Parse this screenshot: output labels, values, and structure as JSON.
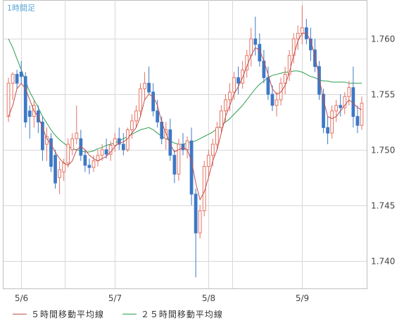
{
  "chart_data": {
    "type": "candlestick",
    "title": "1時間足",
    "x_ticks": [
      "5/6",
      "5/7",
      "5/8",
      "5/9"
    ],
    "y_ticks": [
      1.74,
      1.745,
      1.75,
      1.755,
      1.76
    ],
    "ylim": [
      1.7375,
      1.7635
    ],
    "grid": true,
    "colors": {
      "up_candle": "#e57364",
      "down_candle": "#3e78c6",
      "ma5": "#c0504d",
      "ma25": "#2e9e4f",
      "grid": "#d8d8d8",
      "axis_text": "#444444",
      "title": "#5aa7d6"
    },
    "ohlc": [
      [
        1.753,
        1.7565,
        1.7525,
        1.756
      ],
      [
        1.756,
        1.757,
        1.7545,
        1.7568
      ],
      [
        1.7568,
        1.7572,
        1.7555,
        1.756
      ],
      [
        1.757,
        1.758,
        1.756,
        1.7566
      ],
      [
        1.7566,
        1.757,
        1.752,
        1.7525
      ],
      [
        1.7535,
        1.754,
        1.751,
        1.753
      ],
      [
        1.753,
        1.7545,
        1.752,
        1.754
      ],
      [
        1.7535,
        1.754,
        1.7515,
        1.7525
      ],
      [
        1.7525,
        1.753,
        1.749,
        1.75
      ],
      [
        1.7505,
        1.752,
        1.749,
        1.7512
      ],
      [
        1.751,
        1.7515,
        1.748,
        1.7485
      ],
      [
        1.7495,
        1.75,
        1.7465,
        1.747
      ],
      [
        1.7475,
        1.749,
        1.746,
        1.7482
      ],
      [
        1.748,
        1.7492,
        1.7472,
        1.7488
      ],
      [
        1.7488,
        1.751,
        1.7484,
        1.7505
      ],
      [
        1.75,
        1.7515,
        1.7495,
        1.751
      ],
      [
        1.751,
        1.754,
        1.7505,
        1.7515
      ],
      [
        1.751,
        1.7518,
        1.749,
        1.7495
      ],
      [
        1.7495,
        1.75,
        1.748,
        1.7486
      ],
      [
        1.7486,
        1.7492,
        1.7478,
        1.7484
      ],
      [
        1.7484,
        1.7495,
        1.748,
        1.749
      ],
      [
        1.749,
        1.75,
        1.7485,
        1.7495
      ],
      [
        1.7495,
        1.7505,
        1.749,
        1.75
      ],
      [
        1.75,
        1.751,
        1.7492,
        1.7496
      ],
      [
        1.7496,
        1.7508,
        1.749,
        1.7504
      ],
      [
        1.7504,
        1.7515,
        1.7498,
        1.751
      ],
      [
        1.751,
        1.752,
        1.75,
        1.7505
      ],
      [
        1.7505,
        1.7515,
        1.7495,
        1.75
      ],
      [
        1.75,
        1.752,
        1.7498,
        1.7518
      ],
      [
        1.7518,
        1.7532,
        1.751,
        1.7526
      ],
      [
        1.7526,
        1.754,
        1.752,
        1.7535
      ],
      [
        1.7535,
        1.756,
        1.753,
        1.7555
      ],
      [
        1.7555,
        1.757,
        1.7545,
        1.756
      ],
      [
        1.756,
        1.7575,
        1.755,
        1.7552
      ],
      [
        1.7552,
        1.756,
        1.753,
        1.7535
      ],
      [
        1.7535,
        1.7545,
        1.752,
        1.7525
      ],
      [
        1.7525,
        1.753,
        1.7505,
        1.751
      ],
      [
        1.751,
        1.7525,
        1.75,
        1.7518
      ],
      [
        1.7518,
        1.7528,
        1.749,
        1.7495
      ],
      [
        1.7495,
        1.75,
        1.747,
        1.7478
      ],
      [
        1.7478,
        1.751,
        1.7472,
        1.7505
      ],
      [
        1.7505,
        1.7515,
        1.7495,
        1.75
      ],
      [
        1.75,
        1.7512,
        1.7492,
        1.7508
      ],
      [
        1.7508,
        1.752,
        1.745,
        1.746
      ],
      [
        1.746,
        1.7465,
        1.7385,
        1.7425
      ],
      [
        1.7425,
        1.745,
        1.742,
        1.7445
      ],
      [
        1.7445,
        1.749,
        1.744,
        1.7485
      ],
      [
        1.7485,
        1.75,
        1.7475,
        1.7495
      ],
      [
        1.7495,
        1.751,
        1.7485,
        1.7505
      ],
      [
        1.7505,
        1.7525,
        1.75,
        1.752
      ],
      [
        1.752,
        1.754,
        1.7515,
        1.7535
      ],
      [
        1.7535,
        1.755,
        1.7525,
        1.7545
      ],
      [
        1.7545,
        1.756,
        1.7535,
        1.7552
      ],
      [
        1.7552,
        1.757,
        1.7545,
        1.7565
      ],
      [
        1.7565,
        1.7575,
        1.755,
        1.756
      ],
      [
        1.756,
        1.758,
        1.7555,
        1.7572
      ],
      [
        1.7572,
        1.759,
        1.7565,
        1.7585
      ],
      [
        1.7585,
        1.761,
        1.7575,
        1.76
      ],
      [
        1.76,
        1.762,
        1.7585,
        1.7595
      ],
      [
        1.7595,
        1.7605,
        1.7575,
        1.758
      ],
      [
        1.758,
        1.759,
        1.756,
        1.7565
      ],
      [
        1.7565,
        1.7575,
        1.7545,
        1.755
      ],
      [
        1.755,
        1.7558,
        1.7535,
        1.754
      ],
      [
        1.754,
        1.7552,
        1.753,
        1.7545
      ],
      [
        1.7545,
        1.7565,
        1.754,
        1.756
      ],
      [
        1.756,
        1.7575,
        1.755,
        1.7568
      ],
      [
        1.7568,
        1.759,
        1.7562,
        1.7585
      ],
      [
        1.7585,
        1.7605,
        1.7578,
        1.76
      ],
      [
        1.76,
        1.7612,
        1.759,
        1.7605
      ],
      [
        1.7605,
        1.763,
        1.7595,
        1.761
      ],
      [
        1.761,
        1.7618,
        1.7595,
        1.76
      ],
      [
        1.76,
        1.761,
        1.758,
        1.759
      ],
      [
        1.759,
        1.76,
        1.757,
        1.7575
      ],
      [
        1.7575,
        1.758,
        1.7545,
        1.755
      ],
      [
        1.755,
        1.7555,
        1.7515,
        1.752
      ],
      [
        1.752,
        1.753,
        1.7505,
        1.7515
      ],
      [
        1.7515,
        1.754,
        1.751,
        1.7535
      ],
      [
        1.7535,
        1.7545,
        1.7525,
        1.754
      ],
      [
        1.754,
        1.755,
        1.753,
        1.7538
      ],
      [
        1.7538,
        1.7552,
        1.7532,
        1.7548
      ],
      [
        1.7548,
        1.7562,
        1.754,
        1.7556
      ],
      [
        1.7556,
        1.7575,
        1.752,
        1.753
      ],
      [
        1.753,
        1.754,
        1.7515,
        1.7522
      ],
      [
        1.7522,
        1.7548,
        1.7518,
        1.7542
      ]
    ],
    "ma5": [
      1.753,
      1.754,
      1.7555,
      1.756,
      1.7555,
      1.7545,
      1.7535,
      1.753,
      1.752,
      1.751,
      1.7505,
      1.7498,
      1.7492,
      1.7488,
      1.7486,
      1.749,
      1.75,
      1.7503,
      1.75,
      1.7495,
      1.7492,
      1.749,
      1.7492,
      1.7494,
      1.7498,
      1.7503,
      1.7506,
      1.7507,
      1.751,
      1.7515,
      1.752,
      1.753,
      1.7545,
      1.755,
      1.7548,
      1.754,
      1.7525,
      1.7515,
      1.7505,
      1.7498,
      1.75,
      1.7502,
      1.75,
      1.749,
      1.747,
      1.7455,
      1.7462,
      1.7475,
      1.749,
      1.75,
      1.7515,
      1.753,
      1.754,
      1.755,
      1.7557,
      1.7565,
      1.7575,
      1.7585,
      1.7592,
      1.759,
      1.758,
      1.7568,
      1.7555,
      1.755,
      1.7552,
      1.7558,
      1.757,
      1.7585,
      1.7598,
      1.7605,
      1.7605,
      1.7598,
      1.7585,
      1.7565,
      1.7545,
      1.753,
      1.7528,
      1.753,
      1.7535,
      1.754,
      1.7545,
      1.7542,
      1.7538,
      1.7536
    ],
    "ma25": [
      1.76,
      1.7592,
      1.7582,
      1.7572,
      1.7562,
      1.7552,
      1.7545,
      1.7538,
      1.753,
      1.7524,
      1.7518,
      1.7513,
      1.7509,
      1.7506,
      1.7503,
      1.7501,
      1.75,
      1.7499,
      1.7498,
      1.7498,
      1.7499,
      1.7501,
      1.7502,
      1.7504,
      1.7505,
      1.7506,
      1.7508,
      1.751,
      1.7512,
      1.7514,
      1.7516,
      1.7518,
      1.7519,
      1.752,
      1.7518,
      1.7515,
      1.7512,
      1.751,
      1.7508,
      1.7506,
      1.7505,
      1.7505,
      1.7506,
      1.7507,
      1.7508,
      1.751,
      1.7512,
      1.7514,
      1.7516,
      1.7519,
      1.7522,
      1.7525,
      1.7528,
      1.7532,
      1.7536,
      1.754,
      1.7545,
      1.755,
      1.7555,
      1.7559,
      1.7562,
      1.7565,
      1.7567,
      1.7568,
      1.7569,
      1.757,
      1.757,
      1.7571,
      1.7571,
      1.757,
      1.7568,
      1.7566,
      1.7565,
      1.7563,
      1.7562,
      1.7562,
      1.7561,
      1.7561,
      1.7561,
      1.7561,
      1.756,
      1.756,
      1.756,
      1.756
    ],
    "legend": [
      {
        "label": "５時間移動平均線",
        "color": "#c0504d"
      },
      {
        "label": "２５時間移動平均線",
        "color": "#2e9e4f"
      }
    ]
  }
}
